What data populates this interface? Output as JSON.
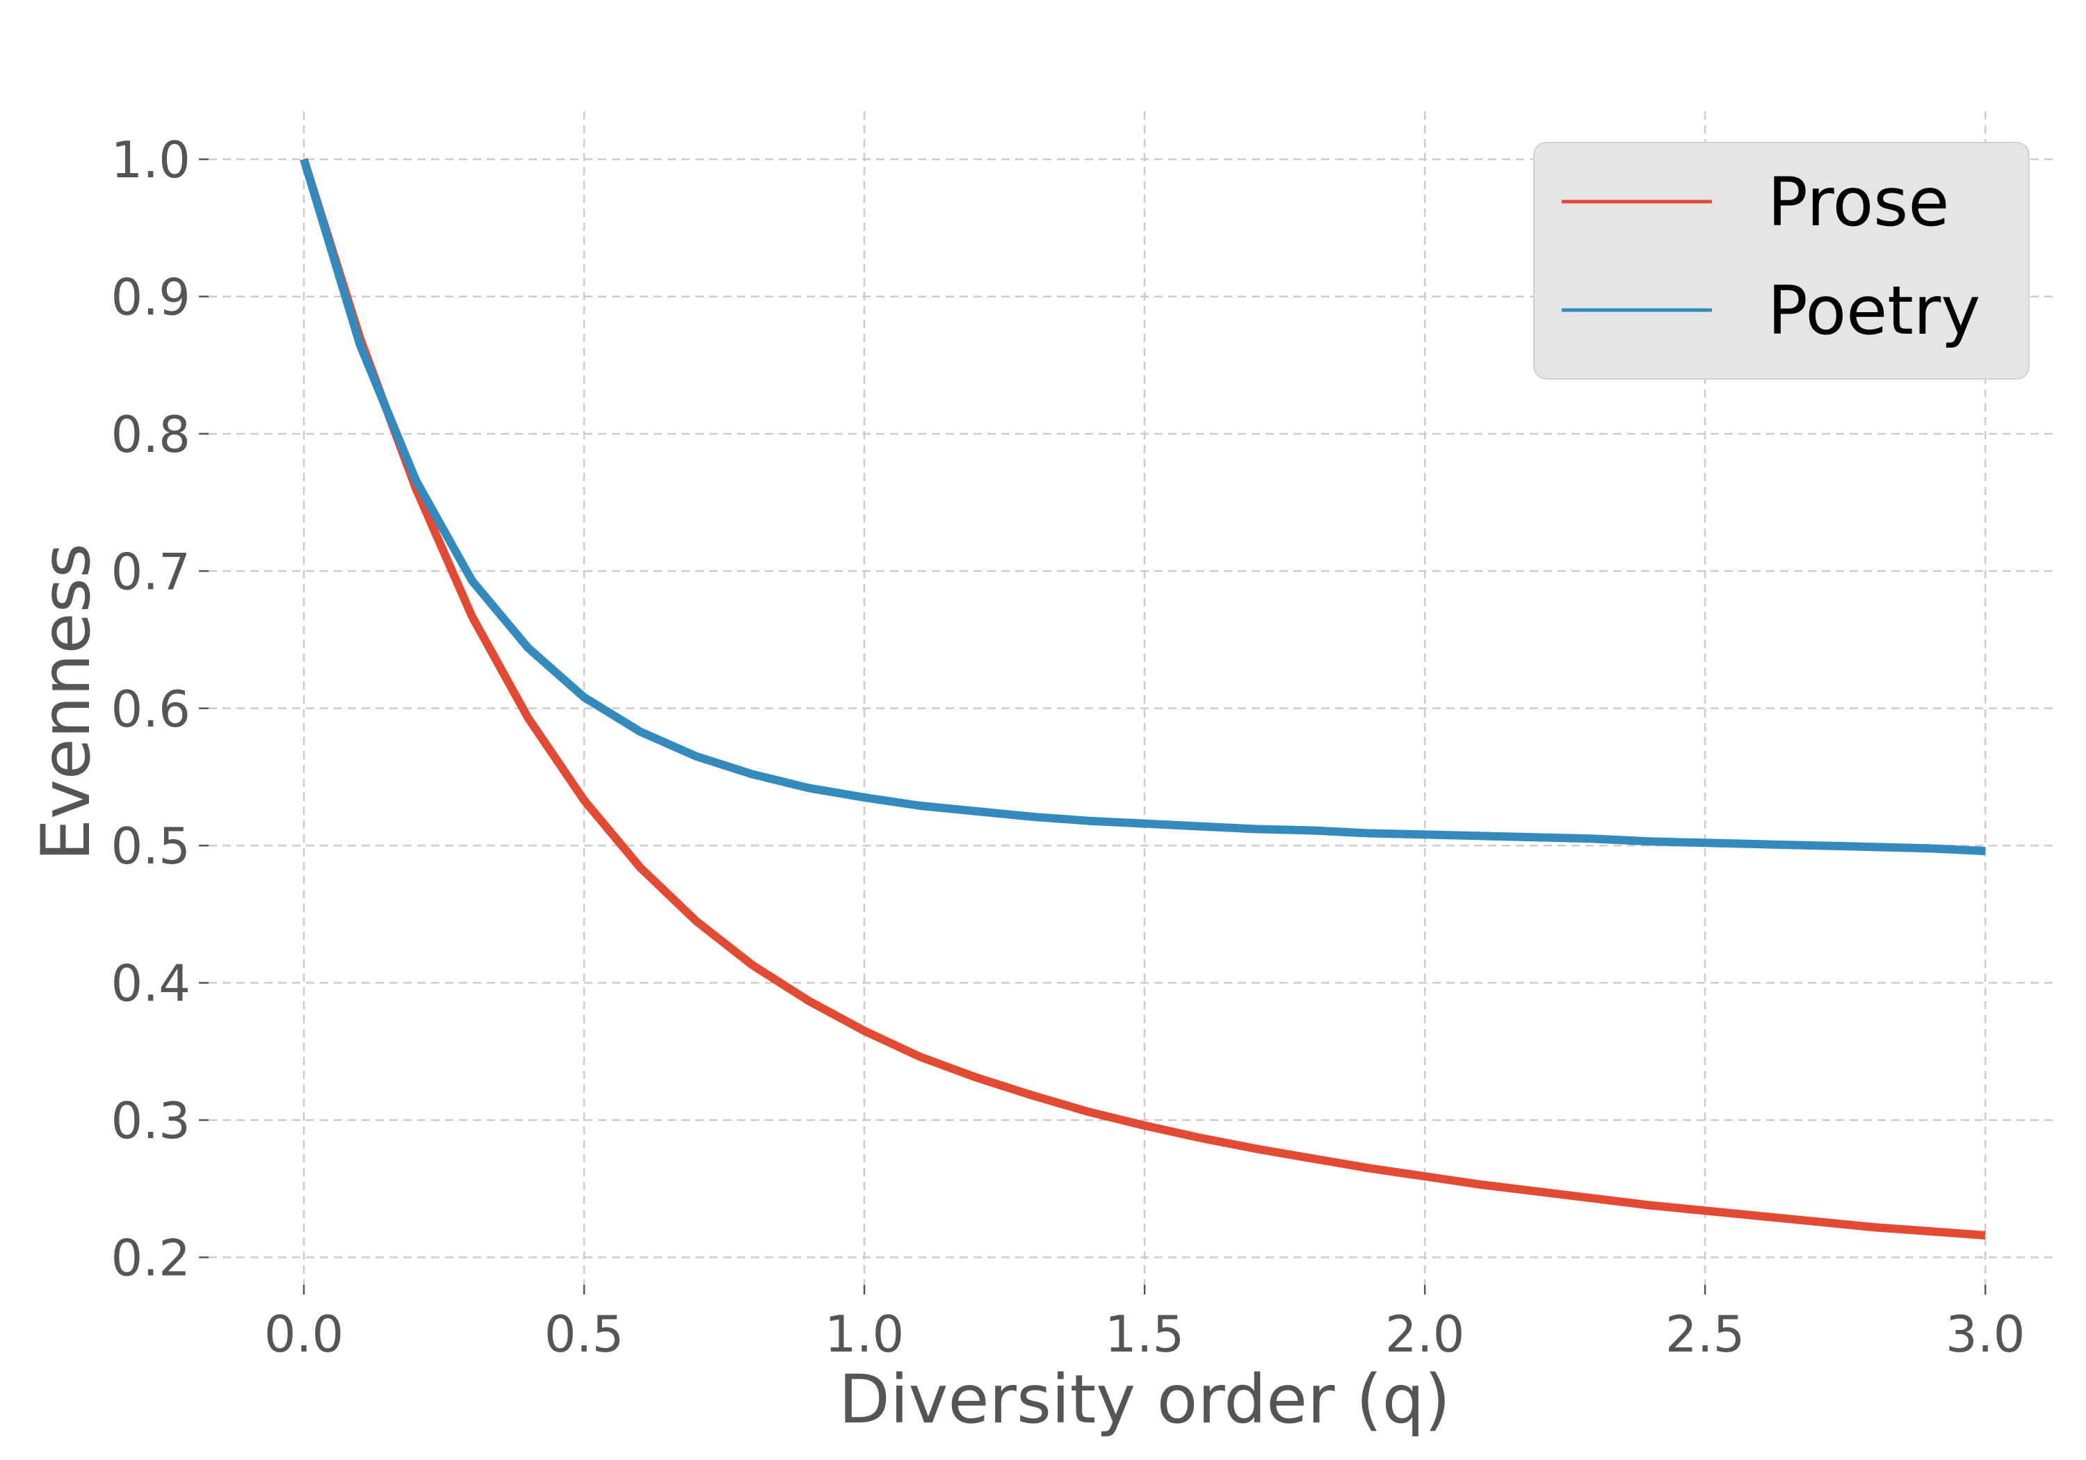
{
  "chart_data": {
    "type": "line",
    "title": "",
    "xlabel": "Diversity order (q)",
    "ylabel": "Evenness",
    "xlim": [
      -0.17,
      3.13
    ],
    "ylim": [
      0.18,
      1.035
    ],
    "xticks": [
      0.0,
      0.5,
      1.0,
      1.5,
      2.0,
      2.5,
      3.0
    ],
    "yticks": [
      0.2,
      0.3,
      0.4,
      0.5,
      0.6,
      0.7,
      0.8,
      0.9,
      1.0
    ],
    "xtick_labels": [
      "0.0",
      "0.5",
      "1.0",
      "1.5",
      "2.0",
      "2.5",
      "3.0"
    ],
    "ytick_labels": [
      "0.2",
      "0.3",
      "0.4",
      "0.5",
      "0.6",
      "0.7",
      "0.8",
      "0.9",
      "1.0"
    ],
    "grid": true,
    "legend_position": "top-right",
    "series": [
      {
        "name": "Prose",
        "color": "#e24a33",
        "x": [
          0.0,
          0.1,
          0.2,
          0.3,
          0.4,
          0.5,
          0.6,
          0.7,
          0.8,
          0.9,
          1.0,
          1.1,
          1.2,
          1.3,
          1.4,
          1.5,
          1.6,
          1.7,
          1.8,
          1.9,
          2.0,
          2.1,
          2.2,
          2.3,
          2.4,
          2.5,
          2.6,
          2.7,
          2.8,
          2.9,
          3.0
        ],
        "y": [
          1.0,
          0.87,
          0.76,
          0.667,
          0.593,
          0.533,
          0.484,
          0.445,
          0.413,
          0.387,
          0.365,
          0.346,
          0.331,
          0.318,
          0.306,
          0.296,
          0.287,
          0.279,
          0.272,
          0.265,
          0.259,
          0.253,
          0.248,
          0.243,
          0.238,
          0.234,
          0.23,
          0.226,
          0.222,
          0.219,
          0.216
        ]
      },
      {
        "name": "Poetry",
        "color": "#348abd",
        "x": [
          0.0,
          0.1,
          0.2,
          0.3,
          0.4,
          0.5,
          0.6,
          0.7,
          0.8,
          0.9,
          1.0,
          1.1,
          1.2,
          1.3,
          1.4,
          1.5,
          1.6,
          1.7,
          1.8,
          1.9,
          2.0,
          2.1,
          2.2,
          2.3,
          2.4,
          2.5,
          2.6,
          2.7,
          2.8,
          2.9,
          3.0
        ],
        "y": [
          1.0,
          0.865,
          0.766,
          0.693,
          0.644,
          0.608,
          0.583,
          0.565,
          0.552,
          0.542,
          0.535,
          0.529,
          0.525,
          0.521,
          0.518,
          0.516,
          0.514,
          0.512,
          0.511,
          0.509,
          0.508,
          0.507,
          0.506,
          0.505,
          0.503,
          0.502,
          0.501,
          0.5,
          0.499,
          0.498,
          0.496
        ]
      }
    ]
  }
}
